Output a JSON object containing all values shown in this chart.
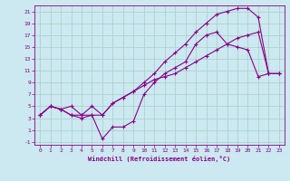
{
  "xlabel": "Windchill (Refroidissement éolien,°C)",
  "background_color": "#cce8f0",
  "grid_color": "#aad4cc",
  "line_color": "#880088",
  "xlim": [
    -0.5,
    23.5
  ],
  "ylim": [
    -1.5,
    22
  ],
  "xtick_labels": [
    "0",
    "1",
    "2",
    "3",
    "4",
    "5",
    "6",
    "7",
    "8",
    "9",
    "10",
    "11",
    "12",
    "13",
    "14",
    "15",
    "16",
    "17",
    "18",
    "19",
    "20",
    "21",
    "22",
    "23"
  ],
  "xtick_vals": [
    0,
    1,
    2,
    3,
    4,
    5,
    6,
    7,
    8,
    9,
    10,
    11,
    12,
    13,
    14,
    15,
    16,
    17,
    18,
    19,
    20,
    21,
    22,
    23
  ],
  "ytick_vals": [
    -1,
    1,
    3,
    5,
    7,
    9,
    11,
    13,
    15,
    17,
    19,
    21
  ],
  "ytick_labels": [
    "-1",
    "1",
    "3",
    "5",
    "7",
    "9",
    "11",
    "13",
    "15",
    "17",
    "19",
    "21"
  ],
  "line1_x": [
    0,
    1,
    2,
    3,
    4,
    5,
    6,
    7,
    8,
    9,
    10,
    11,
    12,
    13,
    14,
    15,
    16,
    17,
    18,
    19,
    20,
    21,
    22,
    23
  ],
  "line1_y": [
    3.5,
    5.0,
    4.5,
    5.0,
    3.5,
    5.0,
    3.5,
    5.5,
    6.5,
    7.5,
    9.0,
    10.5,
    12.5,
    14.0,
    15.5,
    17.5,
    19.0,
    20.5,
    21.0,
    21.5,
    21.5,
    20.0,
    10.5,
    10.5
  ],
  "line2_x": [
    0,
    1,
    2,
    3,
    4,
    5,
    6,
    7,
    8,
    9,
    10,
    11,
    12,
    13,
    14,
    15,
    16,
    17,
    18,
    19,
    20,
    21,
    22,
    23
  ],
  "line2_y": [
    3.5,
    5.0,
    4.5,
    3.5,
    3.0,
    3.5,
    -0.5,
    1.5,
    1.5,
    2.5,
    7.0,
    9.0,
    10.5,
    11.5,
    12.5,
    15.5,
    17.0,
    17.5,
    15.5,
    15.0,
    14.5,
    10.0,
    10.5,
    10.5
  ],
  "line3_x": [
    0,
    1,
    2,
    3,
    4,
    5,
    6,
    7,
    8,
    9,
    10,
    11,
    12,
    13,
    14,
    15,
    16,
    17,
    18,
    19,
    20,
    21,
    22,
    23
  ],
  "line3_y": [
    3.5,
    5.0,
    4.5,
    3.5,
    3.5,
    3.5,
    3.5,
    5.5,
    6.5,
    7.5,
    8.5,
    9.5,
    10.0,
    10.5,
    11.5,
    12.5,
    13.5,
    14.5,
    15.5,
    16.5,
    17.0,
    17.5,
    10.5,
    10.5
  ]
}
